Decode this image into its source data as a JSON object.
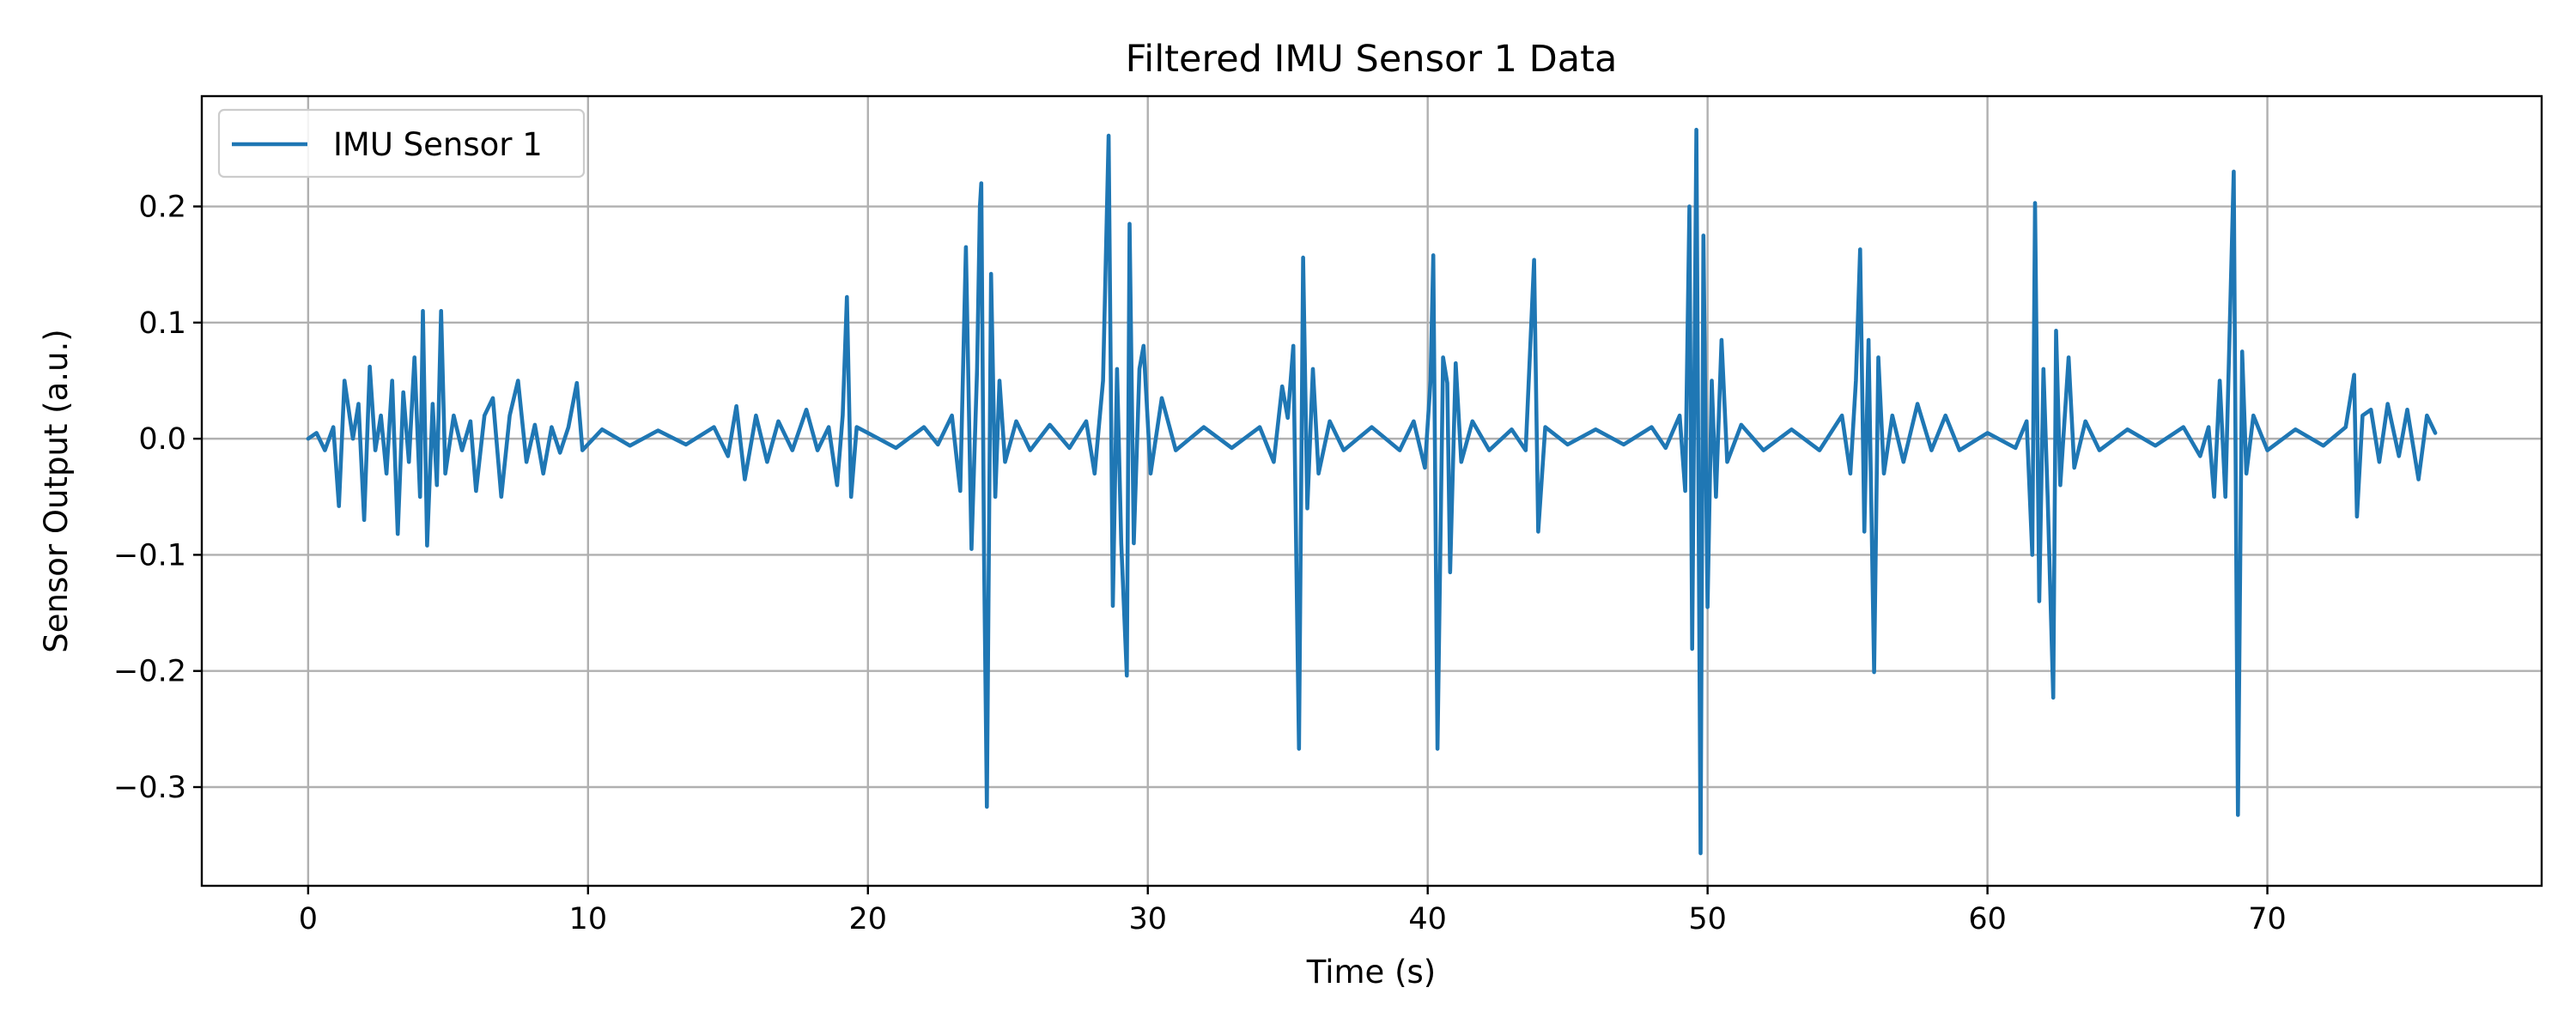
{
  "chart_data": {
    "type": "line",
    "title": "Filtered IMU Sensor 1 Data",
    "xlabel": "Time (s)",
    "ylabel": "Sensor Output (a.u.)",
    "xlim": [
      -3.8,
      79.8
    ],
    "ylim": [
      -0.385,
      0.295
    ],
    "xticks": [
      0,
      10,
      20,
      30,
      40,
      50,
      60,
      70
    ],
    "yticks": [
      0.2,
      0.1,
      0.0,
      -0.1,
      -0.2,
      -0.3
    ],
    "x_tick_labels": [
      "0",
      "10",
      "20",
      "30",
      "40",
      "50",
      "60",
      "70"
    ],
    "y_tick_labels": [
      "0.2",
      "0.1",
      "0.0",
      "−0.1",
      "−0.2",
      "−0.3"
    ],
    "grid": true,
    "legend": {
      "position": "top-left"
    },
    "series": [
      {
        "name": "IMU Sensor 1",
        "color": "#1f77b4",
        "points": [
          [
            0.0,
            0.0
          ],
          [
            0.3,
            0.005
          ],
          [
            0.6,
            -0.01
          ],
          [
            0.9,
            0.01
          ],
          [
            1.1,
            -0.058
          ],
          [
            1.3,
            0.05
          ],
          [
            1.6,
            0.0
          ],
          [
            1.8,
            0.03
          ],
          [
            2.0,
            -0.07
          ],
          [
            2.2,
            0.062
          ],
          [
            2.4,
            -0.01
          ],
          [
            2.6,
            0.02
          ],
          [
            2.8,
            -0.03
          ],
          [
            3.0,
            0.05
          ],
          [
            3.2,
            -0.082
          ],
          [
            3.4,
            0.04
          ],
          [
            3.6,
            -0.02
          ],
          [
            3.8,
            0.07
          ],
          [
            4.0,
            -0.05
          ],
          [
            4.1,
            0.11
          ],
          [
            4.25,
            -0.092
          ],
          [
            4.45,
            0.03
          ],
          [
            4.6,
            -0.04
          ],
          [
            4.75,
            0.11
          ],
          [
            4.9,
            -0.03
          ],
          [
            5.2,
            0.02
          ],
          [
            5.5,
            -0.01
          ],
          [
            5.8,
            0.015
          ],
          [
            6.0,
            -0.045
          ],
          [
            6.3,
            0.02
          ],
          [
            6.6,
            0.035
          ],
          [
            6.9,
            -0.05
          ],
          [
            7.2,
            0.02
          ],
          [
            7.5,
            0.05
          ],
          [
            7.8,
            -0.02
          ],
          [
            8.1,
            0.012
          ],
          [
            8.4,
            -0.03
          ],
          [
            8.7,
            0.01
          ],
          [
            9.0,
            -0.012
          ],
          [
            9.3,
            0.01
          ],
          [
            9.6,
            0.048
          ],
          [
            9.8,
            -0.01
          ],
          [
            10.5,
            0.008
          ],
          [
            11.5,
            -0.006
          ],
          [
            12.5,
            0.007
          ],
          [
            13.5,
            -0.005
          ],
          [
            14.5,
            0.01
          ],
          [
            15.0,
            -0.015
          ],
          [
            15.3,
            0.028
          ],
          [
            15.6,
            -0.035
          ],
          [
            16.0,
            0.02
          ],
          [
            16.4,
            -0.02
          ],
          [
            16.8,
            0.015
          ],
          [
            17.3,
            -0.01
          ],
          [
            17.8,
            0.025
          ],
          [
            18.2,
            -0.01
          ],
          [
            18.6,
            0.01
          ],
          [
            18.9,
            -0.04
          ],
          [
            19.1,
            0.02
          ],
          [
            19.25,
            0.122
          ],
          [
            19.4,
            -0.05
          ],
          [
            19.6,
            0.01
          ],
          [
            20.0,
            0.005
          ],
          [
            21.0,
            -0.008
          ],
          [
            22.0,
            0.01
          ],
          [
            22.5,
            -0.005
          ],
          [
            23.0,
            0.02
          ],
          [
            23.3,
            -0.045
          ],
          [
            23.5,
            0.165
          ],
          [
            23.7,
            -0.095
          ],
          [
            23.9,
            0.06
          ],
          [
            24.0,
            0.2
          ],
          [
            24.05,
            0.22
          ],
          [
            24.15,
            -0.1
          ],
          [
            24.25,
            -0.317
          ],
          [
            24.4,
            0.142
          ],
          [
            24.55,
            -0.05
          ],
          [
            24.7,
            0.05
          ],
          [
            24.9,
            -0.02
          ],
          [
            25.3,
            0.015
          ],
          [
            25.8,
            -0.01
          ],
          [
            26.5,
            0.012
          ],
          [
            27.2,
            -0.008
          ],
          [
            27.8,
            0.015
          ],
          [
            28.1,
            -0.03
          ],
          [
            28.4,
            0.05
          ],
          [
            28.6,
            0.261
          ],
          [
            28.75,
            -0.144
          ],
          [
            28.9,
            0.06
          ],
          [
            29.05,
            -0.09
          ],
          [
            29.25,
            -0.204
          ],
          [
            29.35,
            0.185
          ],
          [
            29.5,
            -0.09
          ],
          [
            29.7,
            0.06
          ],
          [
            29.85,
            0.08
          ],
          [
            30.1,
            -0.03
          ],
          [
            30.5,
            0.035
          ],
          [
            31.0,
            -0.01
          ],
          [
            32.0,
            0.01
          ],
          [
            33.0,
            -0.008
          ],
          [
            34.0,
            0.01
          ],
          [
            34.5,
            -0.02
          ],
          [
            34.8,
            0.045
          ],
          [
            35.0,
            0.018
          ],
          [
            35.2,
            0.08
          ],
          [
            35.4,
            -0.267
          ],
          [
            35.55,
            0.156
          ],
          [
            35.7,
            -0.06
          ],
          [
            35.9,
            0.06
          ],
          [
            36.1,
            -0.03
          ],
          [
            36.5,
            0.015
          ],
          [
            37.0,
            -0.01
          ],
          [
            38.0,
            0.01
          ],
          [
            39.0,
            -0.01
          ],
          [
            39.5,
            0.015
          ],
          [
            39.9,
            -0.025
          ],
          [
            40.1,
            0.05
          ],
          [
            40.2,
            0.158
          ],
          [
            40.35,
            -0.267
          ],
          [
            40.55,
            0.07
          ],
          [
            40.7,
            0.048
          ],
          [
            40.8,
            -0.115
          ],
          [
            41.0,
            0.065
          ],
          [
            41.2,
            -0.02
          ],
          [
            41.6,
            0.015
          ],
          [
            42.2,
            -0.01
          ],
          [
            43.0,
            0.008
          ],
          [
            43.5,
            -0.01
          ],
          [
            43.8,
            0.154
          ],
          [
            43.95,
            -0.08
          ],
          [
            44.2,
            0.01
          ],
          [
            45.0,
            -0.005
          ],
          [
            46.0,
            0.008
          ],
          [
            47.0,
            -0.005
          ],
          [
            48.0,
            0.01
          ],
          [
            48.5,
            -0.008
          ],
          [
            49.0,
            0.02
          ],
          [
            49.2,
            -0.045
          ],
          [
            49.35,
            0.2
          ],
          [
            49.45,
            -0.181
          ],
          [
            49.6,
            0.266
          ],
          [
            49.75,
            -0.357
          ],
          [
            49.85,
            0.175
          ],
          [
            50.0,
            -0.145
          ],
          [
            50.15,
            0.05
          ],
          [
            50.3,
            -0.05
          ],
          [
            50.5,
            0.085
          ],
          [
            50.7,
            -0.02
          ],
          [
            51.2,
            0.012
          ],
          [
            52.0,
            -0.01
          ],
          [
            53.0,
            0.008
          ],
          [
            54.0,
            -0.01
          ],
          [
            54.8,
            0.02
          ],
          [
            55.1,
            -0.03
          ],
          [
            55.3,
            0.05
          ],
          [
            55.45,
            0.163
          ],
          [
            55.6,
            -0.08
          ],
          [
            55.75,
            0.085
          ],
          [
            55.95,
            -0.201
          ],
          [
            56.1,
            0.07
          ],
          [
            56.3,
            -0.03
          ],
          [
            56.6,
            0.02
          ],
          [
            57.0,
            -0.02
          ],
          [
            57.5,
            0.03
          ],
          [
            58.0,
            -0.01
          ],
          [
            58.5,
            0.02
          ],
          [
            59.0,
            -0.01
          ],
          [
            60.0,
            0.005
          ],
          [
            61.0,
            -0.008
          ],
          [
            61.4,
            0.015
          ],
          [
            61.6,
            -0.1
          ],
          [
            61.7,
            0.203
          ],
          [
            61.85,
            -0.14
          ],
          [
            62.0,
            0.06
          ],
          [
            62.15,
            -0.05
          ],
          [
            62.35,
            -0.223
          ],
          [
            62.45,
            0.093
          ],
          [
            62.6,
            -0.04
          ],
          [
            62.9,
            0.07
          ],
          [
            63.1,
            -0.025
          ],
          [
            63.5,
            0.015
          ],
          [
            64.0,
            -0.01
          ],
          [
            65.0,
            0.008
          ],
          [
            66.0,
            -0.006
          ],
          [
            67.0,
            0.01
          ],
          [
            67.6,
            -0.015
          ],
          [
            67.9,
            0.01
          ],
          [
            68.1,
            -0.05
          ],
          [
            68.3,
            0.05
          ],
          [
            68.5,
            -0.05
          ],
          [
            68.8,
            0.23
          ],
          [
            68.95,
            -0.324
          ],
          [
            69.1,
            0.075
          ],
          [
            69.25,
            -0.03
          ],
          [
            69.5,
            0.02
          ],
          [
            70.0,
            -0.01
          ],
          [
            71.0,
            0.008
          ],
          [
            72.0,
            -0.006
          ],
          [
            72.8,
            0.01
          ],
          [
            73.1,
            0.055
          ],
          [
            73.2,
            -0.067
          ],
          [
            73.4,
            0.02
          ],
          [
            73.7,
            0.025
          ],
          [
            74.0,
            -0.02
          ],
          [
            74.3,
            0.03
          ],
          [
            74.7,
            -0.015
          ],
          [
            75.0,
            0.025
          ],
          [
            75.4,
            -0.035
          ],
          [
            75.7,
            0.02
          ],
          [
            76.0,
            0.005
          ]
        ]
      }
    ]
  }
}
